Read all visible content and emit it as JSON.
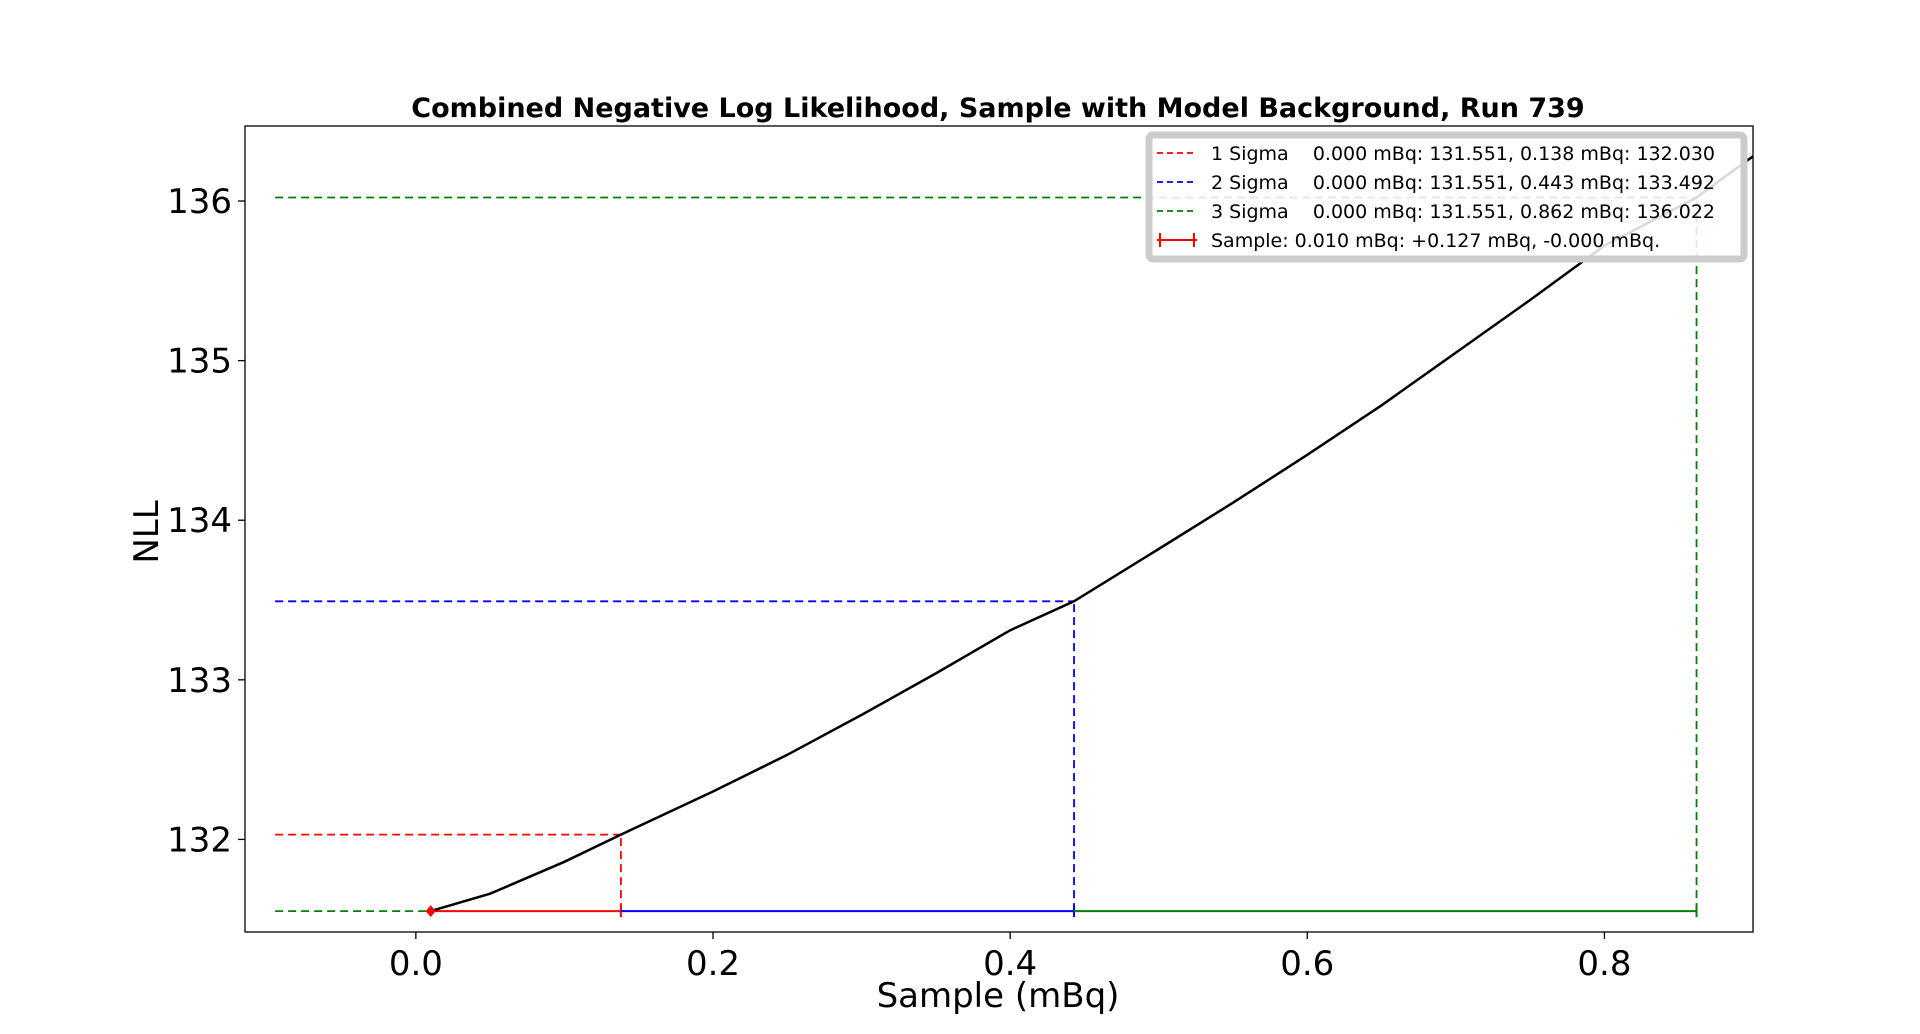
{
  "chart_data": {
    "type": "line",
    "title": "Combined Negative Log Likelihood, Sample with Model Background, Run 739",
    "xlabel": "Sample (mBq)",
    "ylabel": "NLL",
    "xlim": [
      -0.115,
      0.9
    ],
    "ylim": [
      131.42,
      136.47
    ],
    "xticks": [
      0.0,
      0.2,
      0.4,
      0.6,
      0.8
    ],
    "xtick_labels": [
      "0.0",
      "0.2",
      "0.4",
      "0.6",
      "0.8"
    ],
    "yticks": [
      132,
      133,
      134,
      135,
      136
    ],
    "ytick_labels": [
      "132",
      "133",
      "134",
      "135",
      "136"
    ],
    "grid": false,
    "legend_position": "top-right",
    "curve": {
      "color": "#000000",
      "x": [
        0.01,
        0.05,
        0.1,
        0.138,
        0.2,
        0.25,
        0.3,
        0.35,
        0.4,
        0.443,
        0.5,
        0.55,
        0.6,
        0.65,
        0.7,
        0.75,
        0.8,
        0.862,
        0.9
      ],
      "y": [
        131.551,
        131.66,
        131.86,
        132.03,
        132.3,
        132.53,
        132.78,
        133.04,
        133.31,
        133.492,
        133.82,
        134.11,
        134.41,
        134.72,
        135.05,
        135.38,
        135.72,
        136.022,
        136.28
      ]
    },
    "minimum": {
      "x": 0.01,
      "y": 131.551,
      "color": "#ff0000"
    },
    "sigma_bands": [
      {
        "label": "1 Sigma    0.000 mBq: 131.551, 0.138 mBq: 132.030",
        "x_low": 0.0,
        "x_high": 0.138,
        "y_min": 131.551,
        "y_level": 132.03,
        "color": "#ff0000"
      },
      {
        "label": "2 Sigma    0.000 mBq: 131.551, 0.443 mBq: 133.492",
        "x_low": 0.0,
        "x_high": 0.443,
        "y_min": 131.551,
        "y_level": 133.492,
        "color": "#0000ff"
      },
      {
        "label": "3 Sigma    0.000 mBq: 131.551, 0.862 mBq: 136.022",
        "x_low": 0.0,
        "x_high": 0.862,
        "y_min": 131.551,
        "y_level": 136.022,
        "color": "#008000"
      }
    ],
    "sample_legend": {
      "label": "Sample: 0.010 mBq: +0.127 mBq, -0.000 mBq.",
      "color": "#ff0000"
    }
  }
}
